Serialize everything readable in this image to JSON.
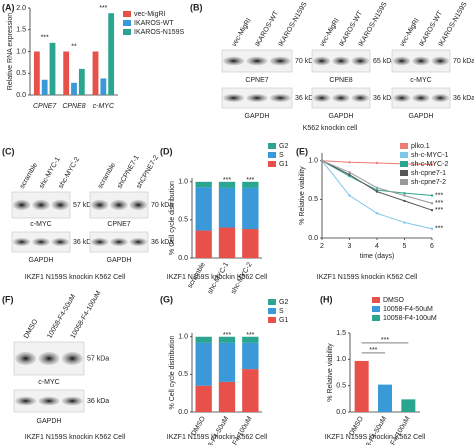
{
  "panel_labels": [
    "(A)",
    "(B)",
    "(C)",
    "(D)",
    "(E)",
    "(F)",
    "(G)",
    "(H)"
  ],
  "blot_groups": [
    {
      "caption": "K562 knockin cell",
      "blots": [
        {
          "lanes": [
            "vec-MigRI",
            "IKAROS-WT",
            "IKAROS-N159S"
          ],
          "bands": [
            {
              "label": "CPNE7",
              "kda": "70 kDa"
            },
            {
              "label": "GAPDH",
              "kda": "36 kDa"
            }
          ]
        },
        {
          "lanes": [
            "vec-MigRI",
            "IKAROS-WT",
            "IKAROS-N159S"
          ],
          "bands": [
            {
              "label": "CPNE8",
              "kda": "65 kDa"
            },
            {
              "label": "GAPDH",
              "kda": "36 kDa"
            }
          ]
        },
        {
          "lanes": [
            "vec-MigRI",
            "IKAROS-WT",
            "IKAROS-N159S"
          ],
          "bands": [
            {
              "label": "c-MYC",
              "kda": "70 kDa"
            },
            {
              "label": "GAPDH",
              "kda": "36 kDa"
            }
          ]
        }
      ]
    },
    {
      "caption": "IKZF1 N159S knockin K562 Cell",
      "blots": [
        {
          "lanes": [
            "scramble",
            "shc-MYC-1",
            "shc-MYC-2"
          ],
          "bands": [
            {
              "label": "c-MYC",
              "kda": "57 kDa"
            },
            {
              "label": "GAPDH",
              "kda": "36 kDa"
            }
          ]
        },
        {
          "lanes": [
            "scramble",
            "shCPNE7-1",
            "shCPNE7-2"
          ],
          "bands": [
            {
              "label": "CPNE7",
              "kda": "70 kDa"
            },
            {
              "label": "GAPDH",
              "kda": "36 kDa"
            }
          ]
        }
      ]
    },
    {
      "caption": "IKZF1 N159S knockin K562 Cell",
      "blots": [
        {
          "lanes": [
            "DMSO",
            "10058-F4-50uM",
            "10058-F4-100uM"
          ],
          "bands": [
            {
              "label": "c-MYC",
              "kda": "57 kDa"
            },
            {
              "label": "GAPDH",
              "kda": "36 kDa"
            }
          ]
        }
      ]
    }
  ],
  "chart_data": [
    {
      "type": "bar",
      "ylabel": "Relative RNA expression",
      "categories": [
        "CPNE7",
        "CPNE8",
        "c-MYC"
      ],
      "series": [
        {
          "name": "vec-MigRI",
          "color": "#e8504a",
          "values": [
            1,
            1,
            1
          ]
        },
        {
          "name": "IKAROS-WT",
          "color": "#3a9ad9",
          "values": [
            0.35,
            0.28,
            0.38
          ]
        },
        {
          "name": "IKAROS-N159S",
          "color": "#2aa58f",
          "values": [
            1.2,
            0.6,
            1.88
          ]
        }
      ],
      "ylim": [
        0,
        2
      ],
      "yticks": [
        {
          "value": 0,
          "label": "0.0"
        },
        0.5,
        {
          "value": 1,
          "label": "1.0"
        },
        1.5,
        {
          "value": 2,
          "label": "2.0"
        }
      ],
      "annotations": [
        "***",
        "**",
        "***"
      ]
    },
    {
      "type": "stacked_bar",
      "ylabel": "% Cell cycle distribution",
      "caption": "IKZF1 N159S knockin K562 Cell",
      "categories": [
        "scramble",
        "shc-MYC-1",
        "shc-MYC-2"
      ],
      "series": [
        {
          "name": "G1",
          "color": "#e8504a",
          "values": [
            0.36,
            0.4,
            0.38
          ]
        },
        {
          "name": "S",
          "color": "#3a9ad9",
          "values": [
            0.57,
            0.52,
            0.54
          ]
        },
        {
          "name": "G2",
          "color": "#2aa58f",
          "values": [
            0.07,
            0.08,
            0.08
          ]
        }
      ],
      "ylim": [
        0,
        1.05
      ],
      "yticks": [
        {
          "value": 0,
          "label": "0.0"
        },
        0.5,
        {
          "value": 1,
          "label": "1.0"
        }
      ],
      "annotations": [
        "***",
        "***"
      ]
    },
    {
      "type": "line",
      "ylabel": "% Relative viability",
      "xlabel": "time (days)",
      "caption": "IKZF1 N159S knockin K562 Cell",
      "x": [
        2,
        3,
        4,
        5,
        6
      ],
      "series": [
        {
          "name": "plko.1",
          "color": "#f07b72",
          "values": [
            1,
            0.98,
            0.97,
            0.96,
            0.95
          ]
        },
        {
          "name": "sh-c-MYC-1",
          "color": "#7fc6e8",
          "values": [
            1,
            0.55,
            0.32,
            0.2,
            0.12
          ]
        },
        {
          "name": "sh-c-MYC-2",
          "color": "#2aa58f",
          "values": [
            1,
            0.8,
            0.62,
            0.58,
            0.55
          ]
        },
        {
          "name": "sh-cpne7-1",
          "color": "#555555",
          "values": [
            1,
            0.82,
            0.6,
            0.48,
            0.36
          ]
        },
        {
          "name": "sh-cpne7-2",
          "color": "#999999",
          "values": [
            1,
            0.85,
            0.65,
            0.55,
            0.45
          ]
        }
      ],
      "xlim": [
        2,
        6
      ],
      "xticks": [
        2,
        3,
        4,
        5,
        6
      ],
      "ylim": [
        0,
        1.1
      ],
      "yticks": [
        {
          "value": 0,
          "label": "0.0"
        },
        0.5,
        {
          "value": 1,
          "label": "1.0"
        }
      ],
      "annotations": [
        "***",
        "***",
        "***",
        "***"
      ]
    },
    {
      "type": "stacked_bar",
      "ylabel": "% Cell cycle distribution",
      "caption": "IKZF1 N159S knockin K562 Cell",
      "categories": [
        "DMSO",
        "10058-F4-50uM",
        "10058-F4-100uM"
      ],
      "series": [
        {
          "name": "G1",
          "color": "#e8504a",
          "values": [
            0.35,
            0.4,
            0.57
          ]
        },
        {
          "name": "S",
          "color": "#3a9ad9",
          "values": [
            0.57,
            0.52,
            0.35
          ]
        },
        {
          "name": "G2",
          "color": "#2aa58f",
          "values": [
            0.08,
            0.08,
            0.08
          ]
        }
      ],
      "ylim": [
        0,
        1.05
      ],
      "yticks": [
        {
          "value": 0,
          "label": "0.0"
        },
        0.5,
        {
          "value": 1,
          "label": "1.0"
        }
      ],
      "annotations": [
        "***",
        "***"
      ]
    },
    {
      "type": "bar",
      "ylabel": "% Relative viability",
      "caption": "IKZF1 N159S knockin K562 Cell",
      "categories": [
        "DMSO",
        "10058-F4-50uM",
        "10058-F4-100uM"
      ],
      "values": [
        0.97,
        0.52,
        0.24
      ],
      "colors": [
        "#e8504a",
        "#3a9ad9",
        "#2aa58f"
      ],
      "ylim": [
        0,
        1.5
      ],
      "yticks": [
        {
          "value": 0,
          "label": "0.0"
        },
        0.5,
        {
          "value": 1,
          "label": "1.0"
        },
        1.5
      ],
      "annotations": [
        "***",
        "***"
      ]
    }
  ]
}
